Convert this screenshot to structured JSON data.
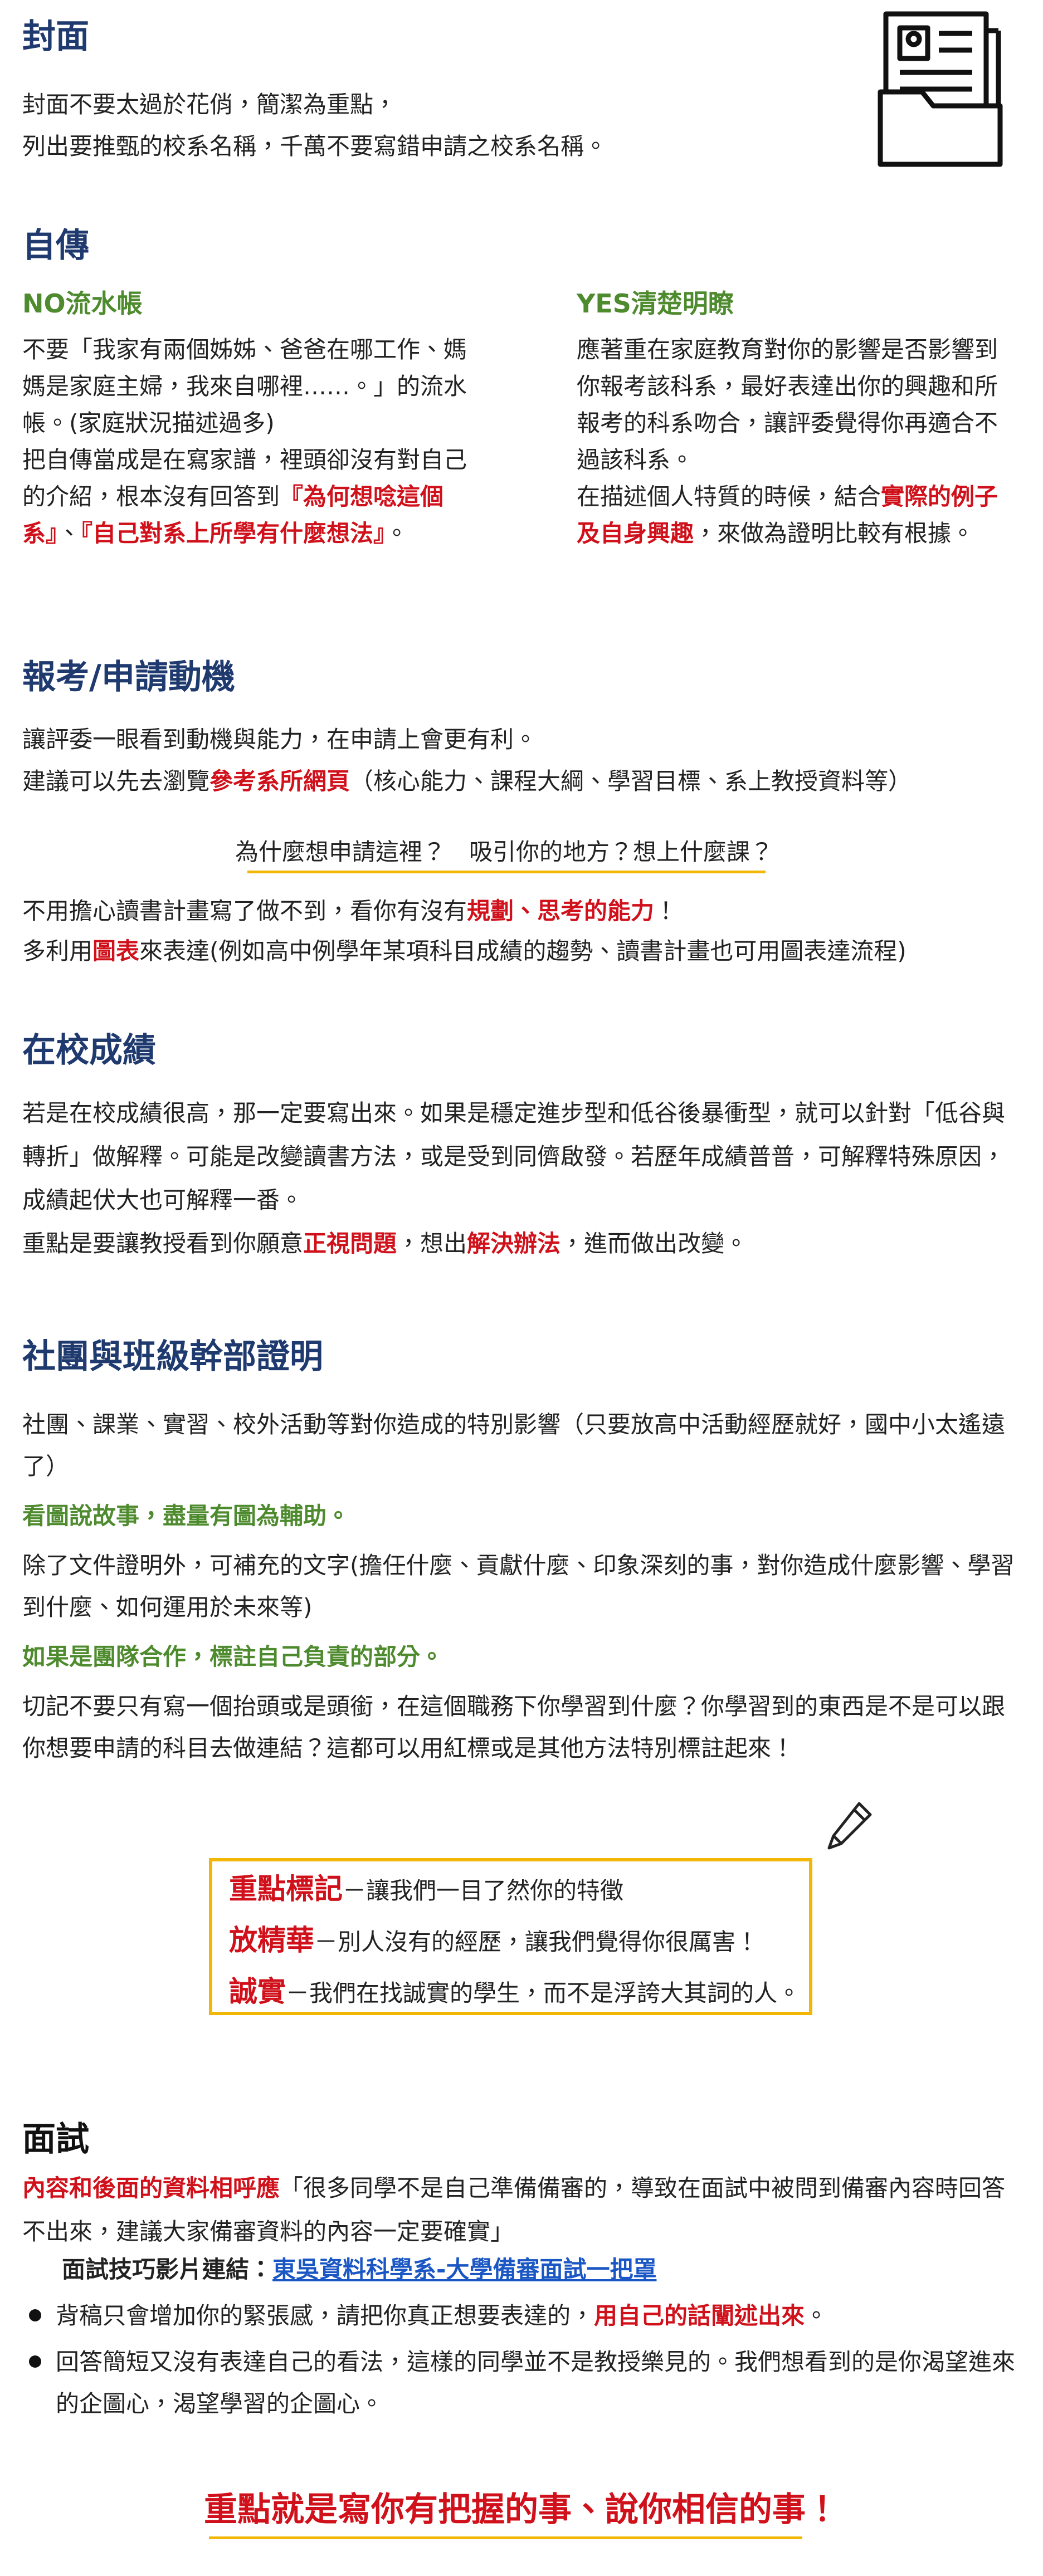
{
  "cover": {
    "title": "封面",
    "lines": [
      "封面不要太過於花俏，簡潔為重點，",
      "列出要推甄的校系名稱，千萬不要寫錯申請之校系名稱。"
    ]
  },
  "autobiography": {
    "title": "自傳",
    "no": {
      "title": "NO流水帳",
      "p1": "不要「我家有兩個姊姊、爸爸在哪工作、媽媽是家庭主婦，我來自哪裡……。」的流水帳。(家庭狀況描述過多)",
      "p2": [
        "把自傳當成是在寫家譜，裡頭卻沒有對自己的介紹，根本沒有回答到",
        "『為何想唸這個系』",
        "、",
        "『自己對系上所學有什麼想法』",
        "。"
      ]
    },
    "yes": {
      "title": "YES清楚明瞭",
      "p1": "應著重在家庭教育對你的影響是否影響到你報考該科系，最好表達出你的興趣和所報考的科系吻合，讓評委覺得你再適合不過該科系。",
      "p2": [
        "在描述個人特質的時候，結合",
        "實際的例子及自身興趣",
        "，來做為證明比較有根據。"
      ]
    }
  },
  "motivation": {
    "title": "報考/申請動機",
    "p1": "讓評委一眼看到動機與能力，在申請上會更有利。",
    "p2": [
      "建議可以先去瀏覽",
      "參考系所網頁",
      "（核心能力、課程大綱、學習目標、系上教授資料等）"
    ],
    "question": "為什麼想申請這裡？　吸引你的地方？想上什麼課？",
    "p3": [
      "不用擔心讀書計畫寫了做不到，看你有沒有",
      "規劃、思考的能力",
      "！"
    ],
    "p4": [
      "多利用",
      "圖表",
      "來表達(例如高中例學年某項科目成績的趨勢、讀書計畫也可用圖表達流程)"
    ]
  },
  "grades": {
    "title": "在校成績",
    "p1": "若是在校成績很高，那一定要寫出來。如果是穩定進步型和低谷後暴衝型，就可以針對「低谷與轉折」做解釋。可能是改變讀書方法，或是受到同儕啟發。若歷年成績普普，可解釋特殊原因，成績起伏大也可解釋一番。",
    "p2": [
      "重點是要讓教授看到你願意",
      "正視問題",
      "，想出",
      "解決辦法",
      "，進而做出改變。"
    ]
  },
  "clubs": {
    "title": "社團與班級幹部證明",
    "p1": "社團、課業、實習、校外活動等對你造成的特別影響（只要放高中活動經歷就好，國中小太遙遠了）",
    "tip1": "看圖說故事，盡量有圖為輔助。",
    "p2": "除了文件證明外，可補充的文字(擔任什麼、貢獻什麼、印象深刻的事，對你造成什麼影響、學習到什麼、如何運用於未來等)",
    "tip2": "如果是團隊合作，標註自己負責的部分。",
    "p3": "切記不要只有寫一個抬頭或是頭銜，在這個職務下你學習到什麼？你學習到的東西是不是可以跟你想要申請的科目去做連結？這都可以用紅標或是其他方法特別標註起來！"
  },
  "box": [
    [
      "重點標記",
      "－讓我們一目了然你的特徵"
    ],
    [
      "放精華",
      "－別人沒有的經歷，讓我們覺得你很厲害！"
    ],
    [
      "誠實",
      "－我們在找誠實的學生，而不是浮誇大其詞的人。"
    ]
  ],
  "interview": {
    "title": "面試",
    "p1": [
      "內容和後面的資料相呼應",
      "「很多同學不是自己準備備審的，導致在面試中被問到備審內容時回答不出來，建議大家備審資料的內容一定要確實」"
    ],
    "link_label": "面試技巧影片連結：",
    "link_text": "東吳資料科學系-大學備審面試一把罩",
    "bullets": [
      [
        "背稿只會增加你的緊張感，請把你真正想要表達的，",
        "用自己的話闡述出來",
        "。"
      ],
      [
        "回答簡短又沒有表達自己的看法，這樣的同學並不是教授樂見的。我們想看到的是你渴望進來的企圖心，渴望學習的企圖心。"
      ]
    ]
  },
  "conclusion": "重點就是寫你有把握的事、說你相信的事！"
}
